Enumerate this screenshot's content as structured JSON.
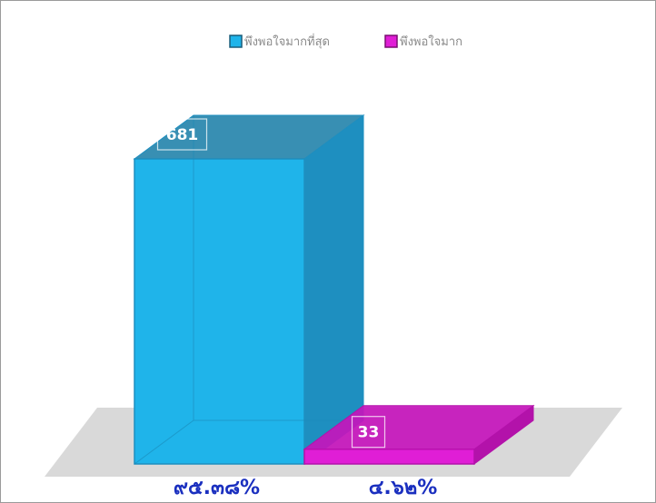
{
  "chart_data": {
    "type": "bar",
    "title": "",
    "xlabel": "",
    "ylabel": "",
    "categories": [
      "พึงพอใจมากที่สุด",
      "พึงพอใจมาก"
    ],
    "values": [
      681,
      33
    ],
    "percent_labels": [
      "๙๕.๓๘%",
      "๔.๖๒%"
    ],
    "ylim": [
      0,
      681
    ],
    "grid": false,
    "three_d": true,
    "legend_position": "top-center",
    "colors": [
      "#1fb4ea",
      "#e01ed6"
    ],
    "side_colors": [
      "#1e8fc0",
      "#b312aa"
    ],
    "top_colors": [
      "#2786ad",
      "#c515bc"
    ],
    "label_color": "#1a2fbf",
    "floor_color": "#d9d9d9"
  }
}
